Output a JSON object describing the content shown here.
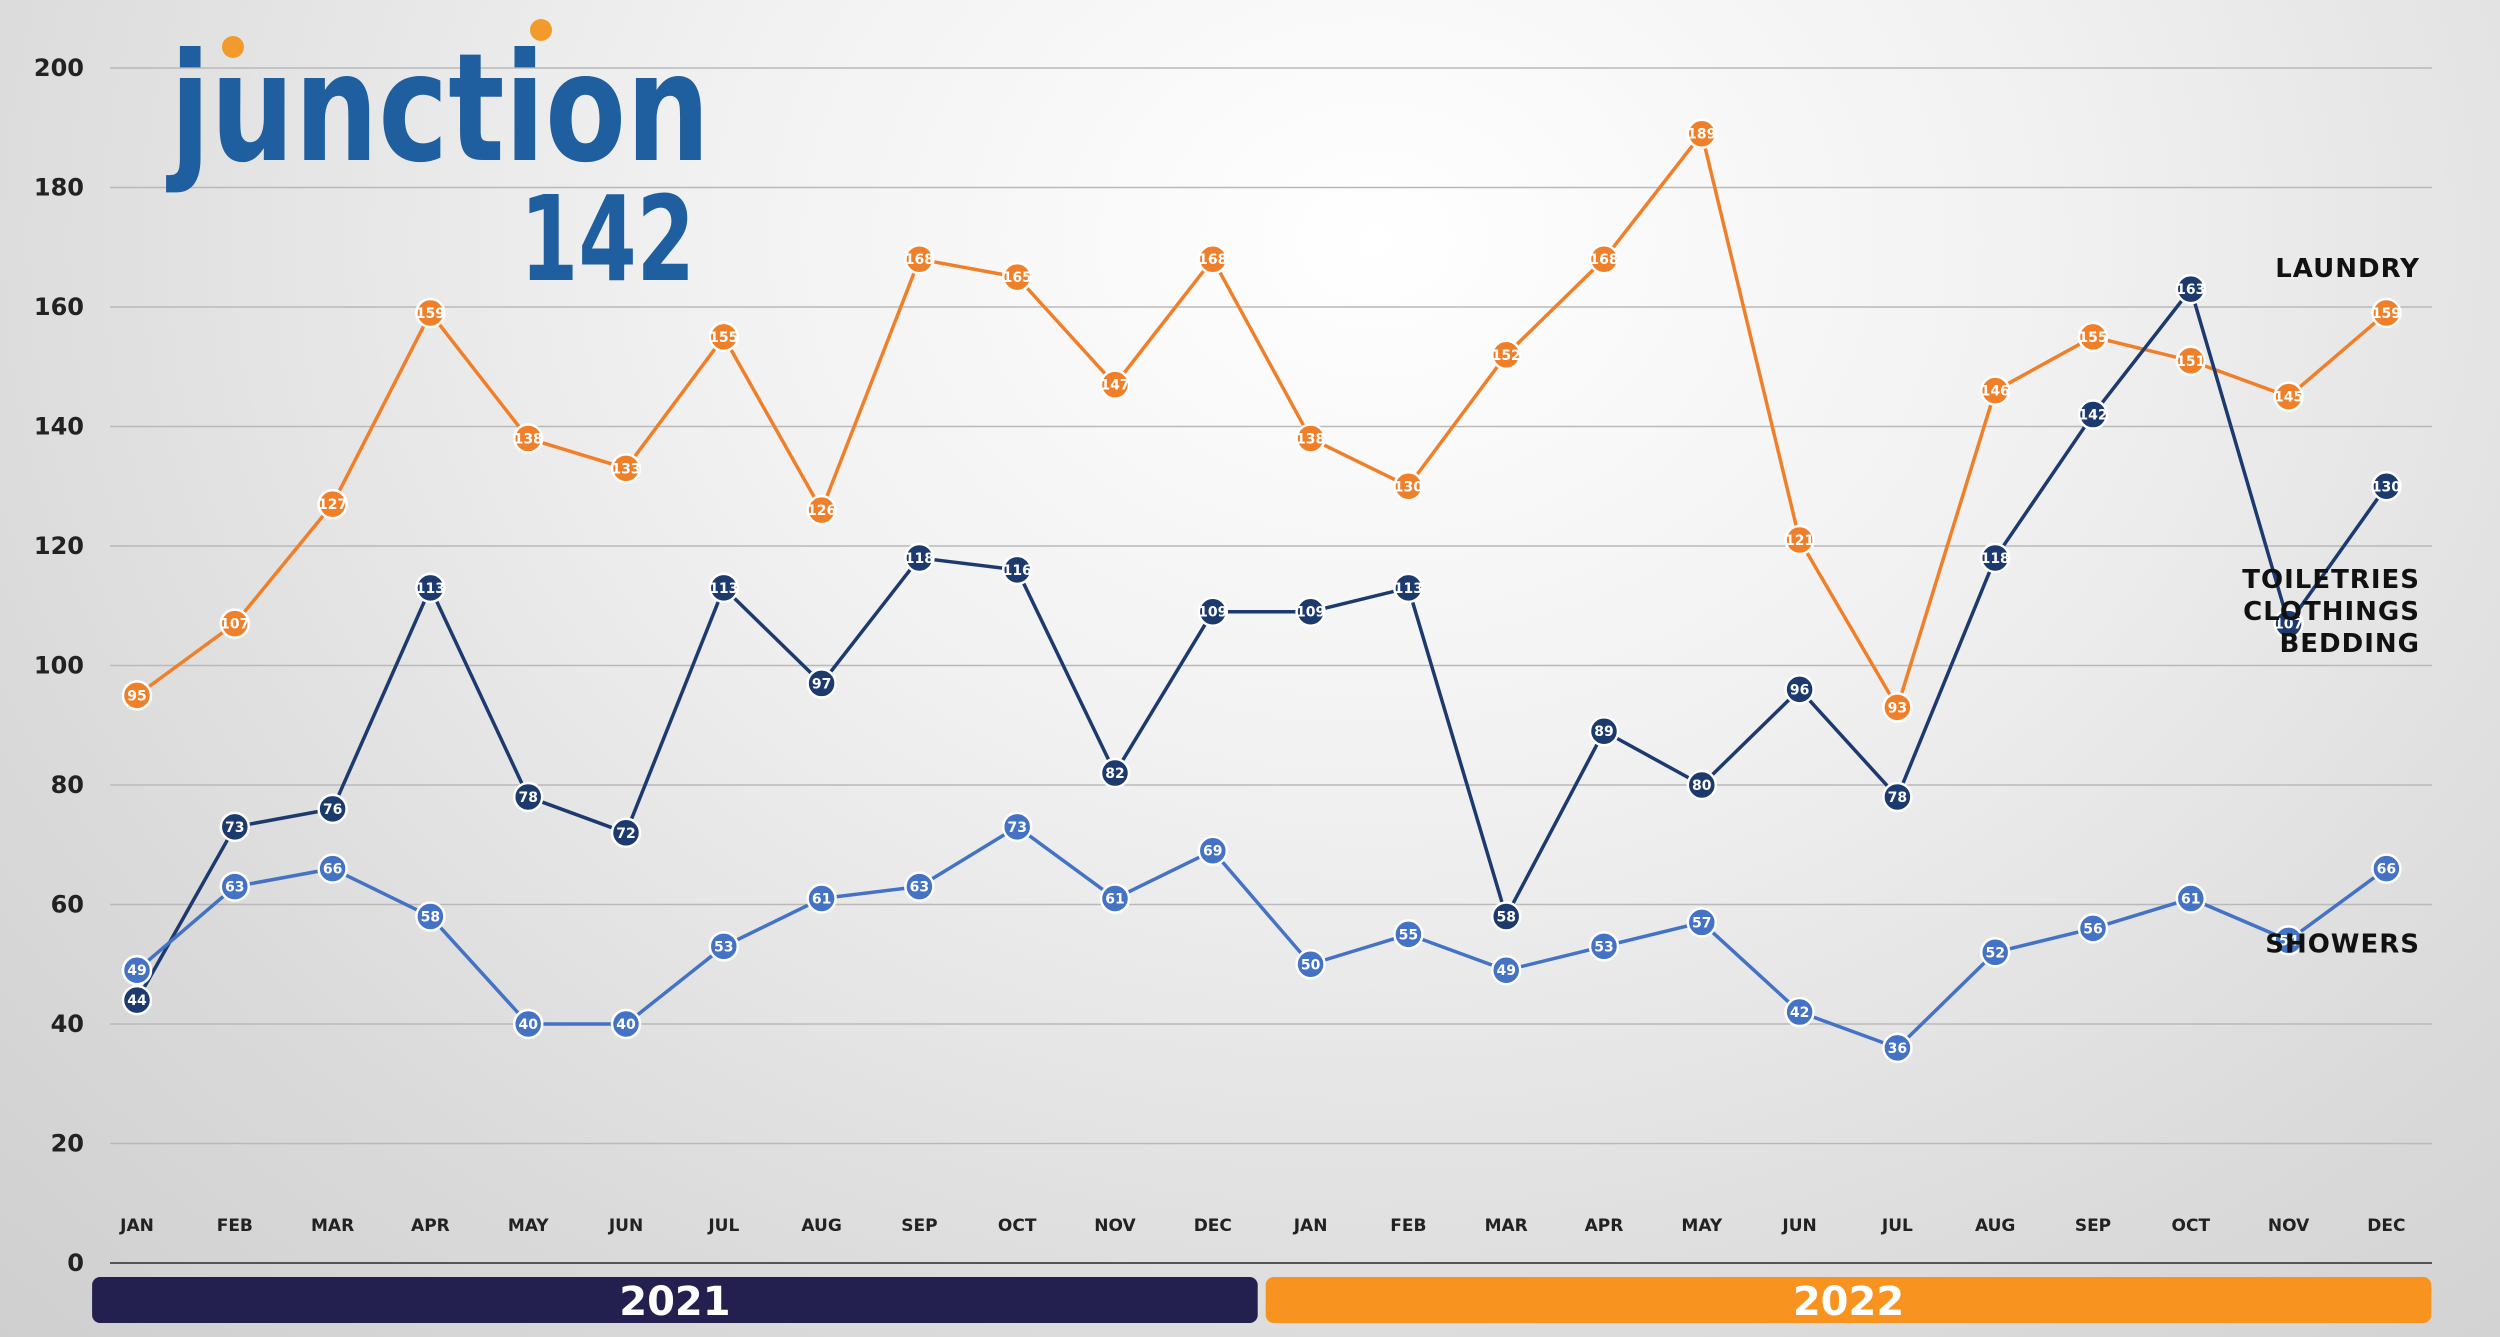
{
  "logo": {
    "word": "junction",
    "number": "142",
    "color": "#1f5f9f",
    "dot_color": "#f39a2c"
  },
  "chart_data": {
    "type": "line",
    "categories": [
      "JAN",
      "FEB",
      "MAR",
      "APR",
      "MAY",
      "JUN",
      "JUL",
      "AUG",
      "SEP",
      "OCT",
      "NOV",
      "DEC",
      "JAN",
      "FEB",
      "MAR",
      "APR",
      "MAY",
      "JUN",
      "JUL",
      "AUG",
      "SEP",
      "OCT",
      "NOV",
      "DEC"
    ],
    "ylim": [
      0,
      200
    ],
    "yticks": [
      0,
      20,
      40,
      60,
      80,
      100,
      120,
      140,
      160,
      180,
      200
    ],
    "grid": true,
    "years": [
      {
        "label": "2021",
        "start": 0,
        "end": 11,
        "color": "#23204f"
      },
      {
        "label": "2022",
        "start": 12,
        "end": 23,
        "color": "#f7931e"
      }
    ],
    "series": [
      {
        "name": "LAUNDRY",
        "label_lines": [
          "LAUNDRY"
        ],
        "label_value": 165,
        "color": "#f07f2a",
        "values": [
          95,
          107,
          127,
          159,
          138,
          133,
          155,
          126,
          168,
          165,
          147,
          168,
          138,
          130,
          152,
          168,
          189,
          121,
          93,
          146,
          155,
          151,
          145,
          159
        ]
      },
      {
        "name": "TOILETRIES CLOTHINGS BEDDING",
        "label_lines": [
          "TOILETRIES",
          "CLOTHINGS",
          "BEDDING"
        ],
        "label_value": 113,
        "color": "#1c3a6e",
        "values": [
          44,
          73,
          76,
          113,
          78,
          72,
          113,
          97,
          118,
          116,
          82,
          109,
          109,
          113,
          58,
          89,
          80,
          96,
          78,
          118,
          142,
          163,
          107,
          130
        ]
      },
      {
        "name": "SHOWERS",
        "label_lines": [
          "SHOWERS"
        ],
        "label_value": 52,
        "color": "#4472c4",
        "values": [
          49,
          63,
          66,
          58,
          40,
          40,
          53,
          61,
          63,
          73,
          61,
          69,
          50,
          55,
          49,
          53,
          57,
          42,
          36,
          52,
          56,
          61,
          54,
          66
        ]
      }
    ]
  }
}
